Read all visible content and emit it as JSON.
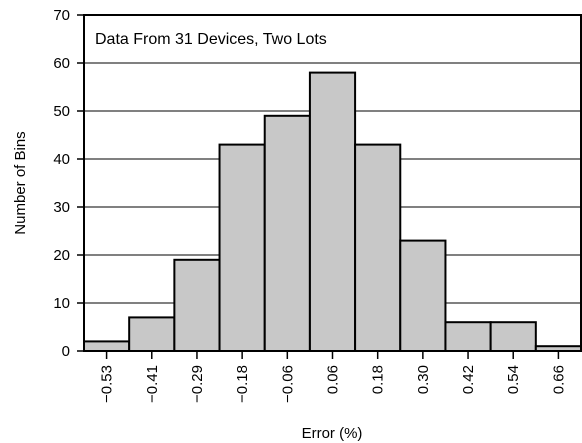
{
  "chart_data": {
    "type": "bar",
    "annotation": "Data From 31 Devices, Two Lots",
    "xlabel": "Error (%)",
    "ylabel": "Number of Bins",
    "categories": [
      "−0.53",
      "−0.41",
      "−0.29",
      "−0.18",
      "−0.06",
      "0.06",
      "0.18",
      "0.30",
      "0.42",
      "0.54",
      "0.66"
    ],
    "values": [
      2,
      7,
      19,
      43,
      49,
      58,
      43,
      23,
      6,
      6,
      1
    ],
    "ylim": [
      0,
      70
    ],
    "yticks": [
      "0",
      "10",
      "20",
      "30",
      "40",
      "50",
      "60",
      "70"
    ],
    "grid": true,
    "colors": {
      "bar_fill": "#c8c8c8",
      "bar_stroke": "#000000",
      "grid": "#000000"
    }
  }
}
